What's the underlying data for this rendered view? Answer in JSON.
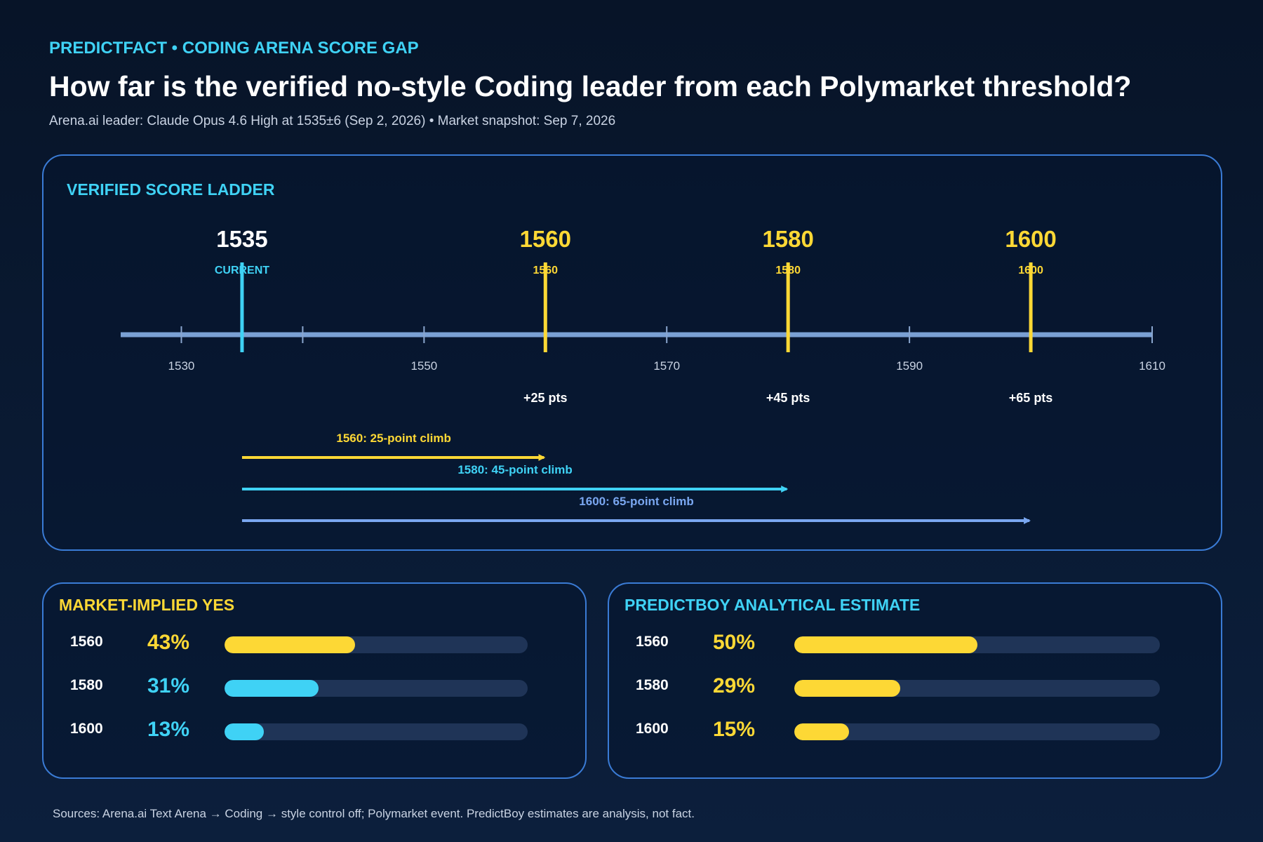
{
  "header": {
    "kicker": "PREDICTFACT • CODING ARENA SCORE GAP",
    "title": "How far is the verified no-style Coding leader from each Polymarket threshold?",
    "subtitle": "Arena.ai leader: Claude Opus 4.6 High at 1535±6 (Sep 2, 2026) • Market snapshot: Sep 7, 2026"
  },
  "chart_data": [
    {
      "type": "number-line",
      "title": "VERIFIED SCORE LADDER",
      "xlim": [
        1525,
        1610
      ],
      "ticks": [
        1530,
        1540,
        1550,
        1560,
        1570,
        1580,
        1590,
        1600,
        1610
      ],
      "tick_labels": [
        "1530",
        "1550",
        "1570",
        "1590",
        "1610"
      ],
      "current": {
        "value": 1535,
        "value_label": "1535",
        "tag": "CURRENT",
        "color": "#3fd2f5"
      },
      "thresholds": [
        {
          "value": 1560,
          "value_label": "1560",
          "tag": "1560",
          "delta_label": "+25 pts",
          "color": "#fdd835"
        },
        {
          "value": 1580,
          "value_label": "1580",
          "tag": "1580",
          "delta_label": "+45 pts",
          "color": "#fdd835"
        },
        {
          "value": 1600,
          "value_label": "1600",
          "tag": "1600",
          "delta_label": "+65 pts",
          "color": "#fdd835"
        }
      ],
      "climbs": [
        {
          "from": 1535,
          "to": 1560,
          "label": "1560: 25-point climb",
          "color": "#fdd835"
        },
        {
          "from": 1535,
          "to": 1580,
          "label": "1580: 45-point climb",
          "color": "#3fd2f5"
        },
        {
          "from": 1535,
          "to": 1600,
          "label": "1600: 65-point climb",
          "color": "#7aa7f0"
        }
      ]
    },
    {
      "type": "bar",
      "orientation": "horizontal",
      "title": "MARKET-IMPLIED YES",
      "categories": [
        "1560",
        "1580",
        "1600"
      ],
      "values": [
        43,
        31,
        13
      ],
      "value_labels": [
        "43%",
        "31%",
        "13%"
      ],
      "colors": [
        "#fdd835",
        "#3fd2f5",
        "#3fd2f5"
      ],
      "xlim": [
        0,
        100
      ]
    },
    {
      "type": "bar",
      "orientation": "horizontal",
      "title": "PREDICTBOY ANALYTICAL ESTIMATE",
      "categories": [
        "1560",
        "1580",
        "1600"
      ],
      "values": [
        50,
        29,
        15
      ],
      "value_labels": [
        "50%",
        "29%",
        "15%"
      ],
      "colors": [
        "#fdd835",
        "#fdd835",
        "#fdd835"
      ],
      "xlim": [
        0,
        100
      ]
    }
  ],
  "colors": {
    "accent_cyan": "#3fd2f5",
    "accent_yellow": "#fdd835",
    "axis": "#7aa0d4",
    "panel_border": "#3a7bd5",
    "track": "#1f3457"
  },
  "footer": {
    "source": "Sources: Arena.ai Text Arena → Coding → style control off; Polymarket event. PredictBoy estimates are analysis, not fact."
  }
}
